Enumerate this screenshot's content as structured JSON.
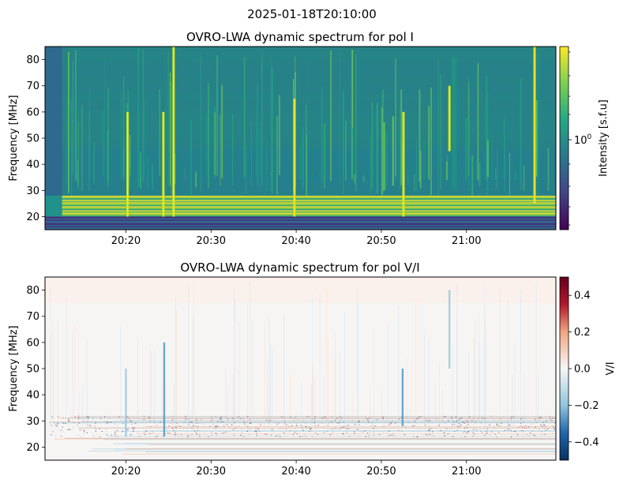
{
  "figure": {
    "suptitle": "2025-01-18T20:10:00"
  },
  "chart_data": [
    {
      "type": "heatmap",
      "title": "OVRO-LWA dynamic spectrum for pol I",
      "xlabel": "",
      "ylabel": "Frequency [MHz]",
      "x_ticks": [
        "20:20",
        "20:30",
        "20:40",
        "20:50",
        "21:00"
      ],
      "x_tick_minutes": [
        20,
        30,
        40,
        50,
        60
      ],
      "x_range_minutes": [
        10.5,
        70.5
      ],
      "y_ticks": [
        20,
        30,
        40,
        50,
        60,
        70,
        80
      ],
      "ylim": [
        15,
        85
      ],
      "colormap": "viridis",
      "colorbar": {
        "label": "Intensity [s.f.u]",
        "scale": "log",
        "major_tick_label": "10^0",
        "tick_base": "10",
        "tick_exp": "0"
      },
      "low_freq_rfi_band_mhz": [
        15,
        20
      ],
      "bright_band_mhz": [
        20,
        28
      ],
      "bursts": [
        {
          "time_minute": 20.2,
          "fmin": 20,
          "fmax": 60
        },
        {
          "time_minute": 24.4,
          "fmin": 20,
          "fmax": 60
        },
        {
          "time_minute": 25.6,
          "fmin": 20,
          "fmax": 85
        },
        {
          "time_minute": 39.8,
          "fmin": 20,
          "fmax": 65
        },
        {
          "time_minute": 52.6,
          "fmin": 20,
          "fmax": 60
        },
        {
          "time_minute": 58.0,
          "fmin": 45,
          "fmax": 70
        },
        {
          "time_minute": 68.0,
          "fmin": 25,
          "fmax": 85
        }
      ]
    },
    {
      "type": "heatmap",
      "title": "OVRO-LWA dynamic spectrum for pol V/I",
      "xlabel": "",
      "ylabel": "Frequency [MHz]",
      "x_ticks": [
        "20:20",
        "20:30",
        "20:40",
        "20:50",
        "21:00"
      ],
      "x_tick_minutes": [
        20,
        30,
        40,
        50,
        60
      ],
      "x_range_minutes": [
        10.5,
        70.5
      ],
      "y_ticks": [
        20,
        30,
        40,
        50,
        60,
        70,
        80
      ],
      "ylim": [
        15,
        85
      ],
      "colormap": "RdBu_r",
      "colorbar": {
        "label": "V/I",
        "range": [
          -0.5,
          0.5
        ],
        "ticks": [
          "−0.4",
          "−0.2",
          "0.0",
          "0.2",
          "0.4"
        ],
        "tick_values": [
          -0.4,
          -0.2,
          0.0,
          0.2,
          0.4
        ]
      },
      "bursts_v_over_i": [
        {
          "time_minute": 20.0,
          "fmin": 24,
          "fmax": 50,
          "value": -0.25
        },
        {
          "time_minute": 24.5,
          "fmin": 24,
          "fmax": 60,
          "value": -0.3
        },
        {
          "time_minute": 52.5,
          "fmin": 28,
          "fmax": 50,
          "value": -0.3
        },
        {
          "time_minute": 58.0,
          "fmin": 50,
          "fmax": 80,
          "value": -0.2
        }
      ]
    }
  ]
}
